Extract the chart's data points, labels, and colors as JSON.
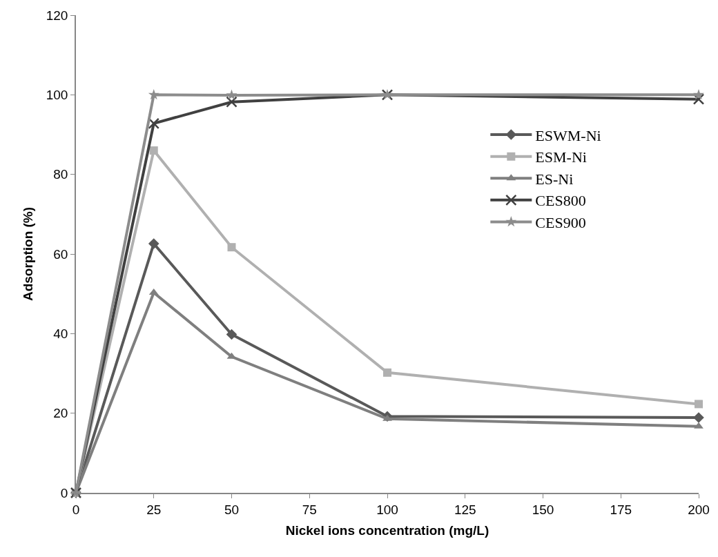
{
  "chart_data": {
    "type": "line",
    "xlabel": "Nickel ions concentration (mg/L)",
    "ylabel": "Adsorption (%)",
    "x": [
      0,
      25,
      50,
      100,
      200
    ],
    "series": [
      {
        "name": "ESWM-Ni",
        "color": "#595959",
        "marker": "diamond",
        "values": [
          0,
          62.6,
          39.8,
          19.2,
          18.9
        ]
      },
      {
        "name": "ESM-Ni",
        "color": "#b0b0b0",
        "marker": "square",
        "values": [
          0,
          86,
          61.7,
          30.2,
          22.3
        ]
      },
      {
        "name": "ES-Ni",
        "color": "#7f7f7f",
        "marker": "triangle",
        "values": [
          0,
          50.3,
          34.2,
          18.6,
          16.7
        ]
      },
      {
        "name": "CES800",
        "color": "#404040",
        "marker": "cross",
        "values": [
          0,
          92.8,
          98.2,
          100,
          98.9
        ]
      },
      {
        "name": "CES900",
        "color": "#8c8c8c",
        "marker": "star",
        "values": [
          0,
          100,
          99.9,
          100,
          100
        ]
      }
    ],
    "xlim": [
      0,
      200
    ],
    "xticks": [
      0,
      25,
      50,
      75,
      100,
      125,
      150,
      175,
      200
    ],
    "ylim": [
      0,
      120
    ],
    "yticks": [
      0,
      20,
      40,
      60,
      80,
      100,
      120
    ],
    "grid": false,
    "legend": "right",
    "line_style": "solid"
  }
}
